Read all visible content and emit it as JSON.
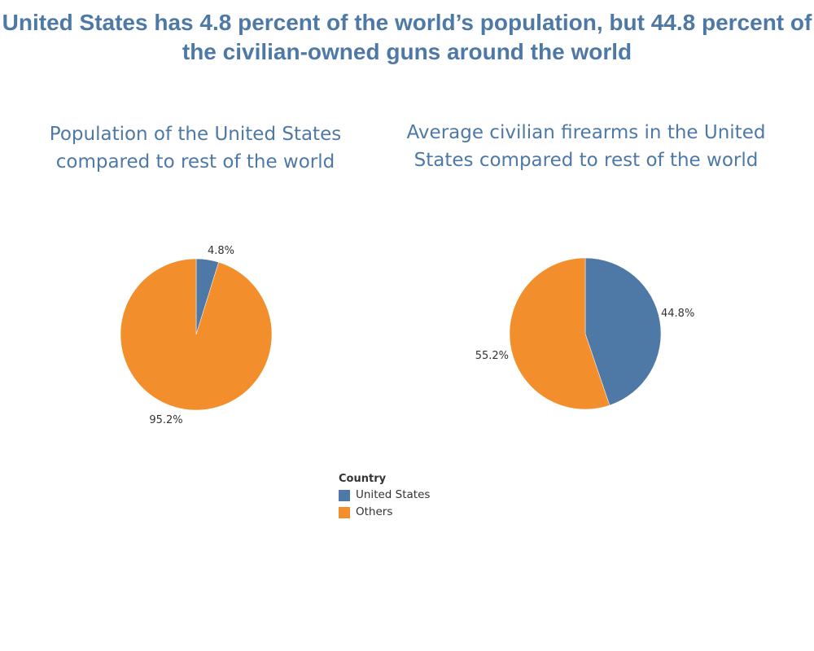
{
  "title": "United States has 4.8 percent of the world’s population, but 44.8 percent of the civilian-owned guns around the world",
  "colors": {
    "title": "#4e79a7",
    "united_states": "#4e79a7",
    "others": "#f28e2b"
  },
  "chart_data": [
    {
      "type": "pie",
      "title": "Population of the United States compared to rest of the world",
      "slices": [
        {
          "name": "United States",
          "value": 4.8,
          "label": "4.8%"
        },
        {
          "name": "Others",
          "value": 95.2,
          "label": "95.2%"
        }
      ]
    },
    {
      "type": "pie",
      "title": "Average civilian firearms in the United States compared to rest of the world",
      "slices": [
        {
          "name": "United States",
          "value": 44.8,
          "label": "44.8%"
        },
        {
          "name": "Others",
          "value": 55.2,
          "label": "55.2%"
        }
      ]
    }
  ],
  "legend": {
    "title": "Country",
    "items": [
      {
        "label": "United States",
        "color": "#4e79a7"
      },
      {
        "label": "Others",
        "color": "#f28e2b"
      }
    ]
  }
}
